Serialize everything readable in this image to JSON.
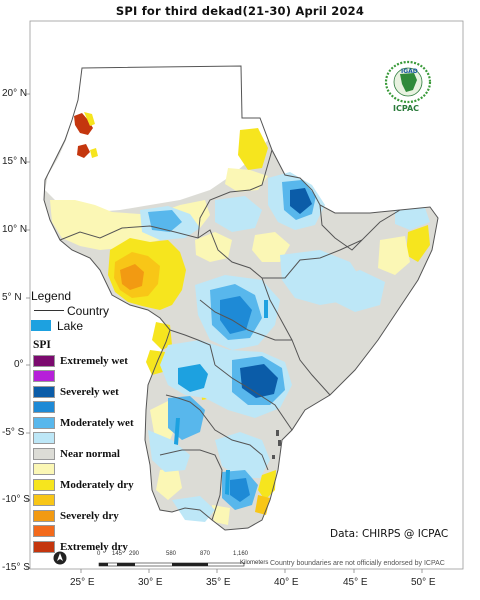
{
  "title": "SPI  for third dekad(21-30) April 2024",
  "axes": {
    "lat_labels": [
      "20° N",
      "15° N",
      "10° N",
      "5° N",
      "0°",
      "-5° S",
      "-10° S",
      "-15° S"
    ],
    "lon_labels": [
      "25° E",
      "30° E",
      "35° E",
      "40° E",
      "45° E",
      "50° E"
    ]
  },
  "legend": {
    "title": "Legend",
    "country_label": "Country",
    "lake_label": "Lake",
    "spi_title": "SPI",
    "classes": [
      {
        "label": "Extremely wet",
        "color": "#7b0a6e"
      },
      {
        "label": "",
        "color": "#b61fd9"
      },
      {
        "label": "Severely wet",
        "color": "#0b5ca8"
      },
      {
        "label": "",
        "color": "#1e8ad6"
      },
      {
        "label": "Moderately wet",
        "color": "#58b7ec"
      },
      {
        "label": "",
        "color": "#bde7f7"
      },
      {
        "label": "Near normal",
        "color": "#dcdcd6"
      },
      {
        "label": "",
        "color": "#fbf7b5"
      },
      {
        "label": "Moderately dry",
        "color": "#f6e51e"
      },
      {
        "label": "",
        "color": "#f8c617"
      },
      {
        "label": "Severely dry",
        "color": "#f29a12"
      },
      {
        "label": "",
        "color": "#f36a1c"
      },
      {
        "label": "Extremely dry",
        "color": "#c4360e"
      }
    ]
  },
  "logo": {
    "name": "IGAD ICPAC",
    "text": "ICPAC"
  },
  "credit": "Data: CHIRPS @ ICPAC",
  "disclaimer": "Country boundaries are not officially endorsed by ICPAC",
  "scale_bar": {
    "labels": [
      "0",
      "145",
      "290",
      "580",
      "870",
      "1,160"
    ],
    "unit": "Kilometers"
  },
  "colors": {
    "land_normal": "#dcdcd6",
    "lake": "#1da1e0",
    "border": "#555555"
  }
}
